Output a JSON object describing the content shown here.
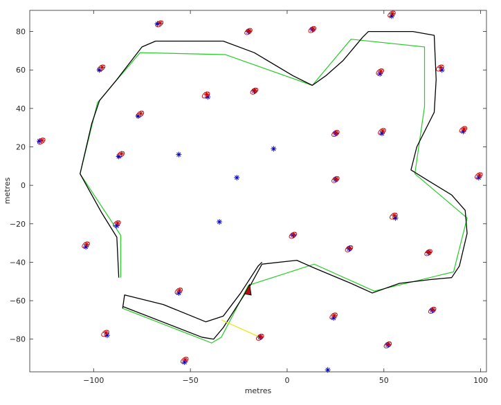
{
  "chart_data": {
    "type": "scatter",
    "xlabel": "metres",
    "ylabel": "metres",
    "xlim": [
      -133,
      103
    ],
    "ylim": [
      -97,
      91
    ],
    "xticks": [
      -100,
      -50,
      0,
      50,
      100
    ],
    "yticks": [
      -80,
      -60,
      -40,
      -20,
      0,
      20,
      40,
      60,
      80
    ],
    "xtick_labels": [
      "−100",
      "−50",
      "0",
      "50",
      "100"
    ],
    "ytick_labels": [
      "−80",
      "−60",
      "−40",
      "−20",
      "0",
      "20",
      "40",
      "60",
      "80"
    ],
    "grid": false,
    "colors": {
      "robot_path": "#000000",
      "ground_truth_path": "#22cc22",
      "true_landmark": "#0000cc",
      "estimated_landmark": "#cc0000",
      "covariance_ellipse": "#cc0000",
      "observation_line": "#e6e600",
      "vehicle_fill": "#aa1111"
    },
    "true_landmarks": [
      [
        -97,
        60
      ],
      [
        -67,
        84
      ],
      [
        -41,
        46
      ],
      [
        -77,
        36
      ],
      [
        -87,
        15
      ],
      [
        -128,
        23
      ],
      [
        -20,
        80
      ],
      [
        -17,
        49
      ],
      [
        13,
        81
      ],
      [
        -56,
        16
      ],
      [
        -26,
        4
      ],
      [
        -7,
        19
      ],
      [
        -35,
        -19
      ],
      [
        25,
        3
      ],
      [
        25,
        27
      ],
      [
        48,
        58
      ],
      [
        49,
        27
      ],
      [
        54,
        88
      ],
      [
        80,
        60
      ],
      [
        91,
        28
      ],
      [
        99,
        4
      ],
      [
        56,
        -17
      ],
      [
        32,
        -33
      ],
      [
        73,
        -35
      ],
      [
        75,
        -65
      ],
      [
        24,
        -69
      ],
      [
        52,
        -83
      ],
      [
        21,
        -96
      ],
      [
        -14,
        -79
      ],
      [
        -53,
        -92
      ],
      [
        -56,
        -56
      ],
      [
        -93,
        -78
      ],
      [
        -104,
        -32
      ],
      [
        -88,
        -21
      ],
      [
        3,
        -26
      ]
    ],
    "estimated_landmarks": [
      [
        -96,
        61
      ],
      [
        -66,
        84
      ],
      [
        -42,
        47
      ],
      [
        -76,
        37
      ],
      [
        -86,
        16
      ],
      [
        -127,
        23
      ],
      [
        -20,
        80
      ],
      [
        -17,
        49
      ],
      [
        13,
        81
      ],
      [
        25,
        3
      ],
      [
        25,
        27
      ],
      [
        48,
        59
      ],
      [
        49,
        28
      ],
      [
        54,
        89
      ],
      [
        79,
        61
      ],
      [
        91,
        29
      ],
      [
        99,
        5
      ],
      [
        55,
        -16
      ],
      [
        32,
        -33
      ],
      [
        73,
        -35
      ],
      [
        75,
        -65
      ],
      [
        24,
        -68
      ],
      [
        52,
        -83
      ],
      [
        -14,
        -79
      ],
      [
        -53,
        -91
      ],
      [
        -56,
        -55
      ],
      [
        -94,
        -77
      ],
      [
        -104,
        -31
      ],
      [
        -88,
        -20
      ],
      [
        3,
        -26
      ]
    ],
    "robot_path": [
      [
        -87,
        -48
      ],
      [
        -88,
        -27
      ],
      [
        -96,
        -14
      ],
      [
        -107,
        6
      ],
      [
        -101,
        32
      ],
      [
        -97,
        44
      ],
      [
        -88,
        55
      ],
      [
        -75,
        72
      ],
      [
        -68,
        75
      ],
      [
        -33,
        75
      ],
      [
        -17,
        69
      ],
      [
        3,
        57
      ],
      [
        13,
        52
      ],
      [
        20,
        57
      ],
      [
        29,
        65
      ],
      [
        39,
        77
      ],
      [
        42,
        80
      ],
      [
        65,
        80
      ],
      [
        76,
        78
      ],
      [
        77,
        55
      ],
      [
        76,
        38
      ],
      [
        67,
        20
      ],
      [
        64,
        8
      ],
      [
        72,
        3
      ],
      [
        85,
        -5
      ],
      [
        92,
        -13
      ],
      [
        93,
        -25
      ],
      [
        89,
        -42
      ],
      [
        85,
        -48
      ],
      [
        74,
        -49
      ],
      [
        58,
        -51
      ],
      [
        44,
        -56
      ],
      [
        33,
        -51
      ],
      [
        14,
        -43
      ],
      [
        5,
        -39
      ],
      [
        -13,
        -41
      ],
      [
        -19,
        -52
      ],
      [
        -33,
        -74
      ],
      [
        -38,
        -80
      ],
      [
        -44,
        -79
      ],
      [
        -85,
        -63
      ]
    ],
    "robot_path_2": [
      [
        -85,
        -64
      ],
      [
        -84,
        -57
      ],
      [
        -64,
        -62
      ],
      [
        -42,
        -71
      ],
      [
        -33,
        -68
      ],
      [
        -24,
        -56
      ],
      [
        -15,
        -42
      ],
      [
        -13,
        -40
      ]
    ],
    "ground_truth_path": [
      [
        -86,
        -48
      ],
      [
        -86,
        -26
      ],
      [
        -107,
        6
      ],
      [
        -98,
        43
      ],
      [
        -76,
        69
      ],
      [
        -32,
        68
      ],
      [
        13,
        52
      ],
      [
        33,
        76
      ],
      [
        71,
        72
      ],
      [
        71,
        41
      ],
      [
        66,
        6
      ],
      [
        93,
        -17
      ],
      [
        86,
        -45
      ],
      [
        45,
        -55
      ],
      [
        14,
        -41
      ],
      [
        -20,
        -52
      ],
      [
        -34,
        -79
      ],
      [
        -39,
        -82
      ],
      [
        -85,
        -64
      ]
    ],
    "observation_lines": [
      [
        [
          -34,
          -70
        ],
        [
          -14,
          -79
        ]
      ]
    ],
    "vehicle": {
      "x": -20,
      "y": -55,
      "heading_deg": 80
    }
  }
}
